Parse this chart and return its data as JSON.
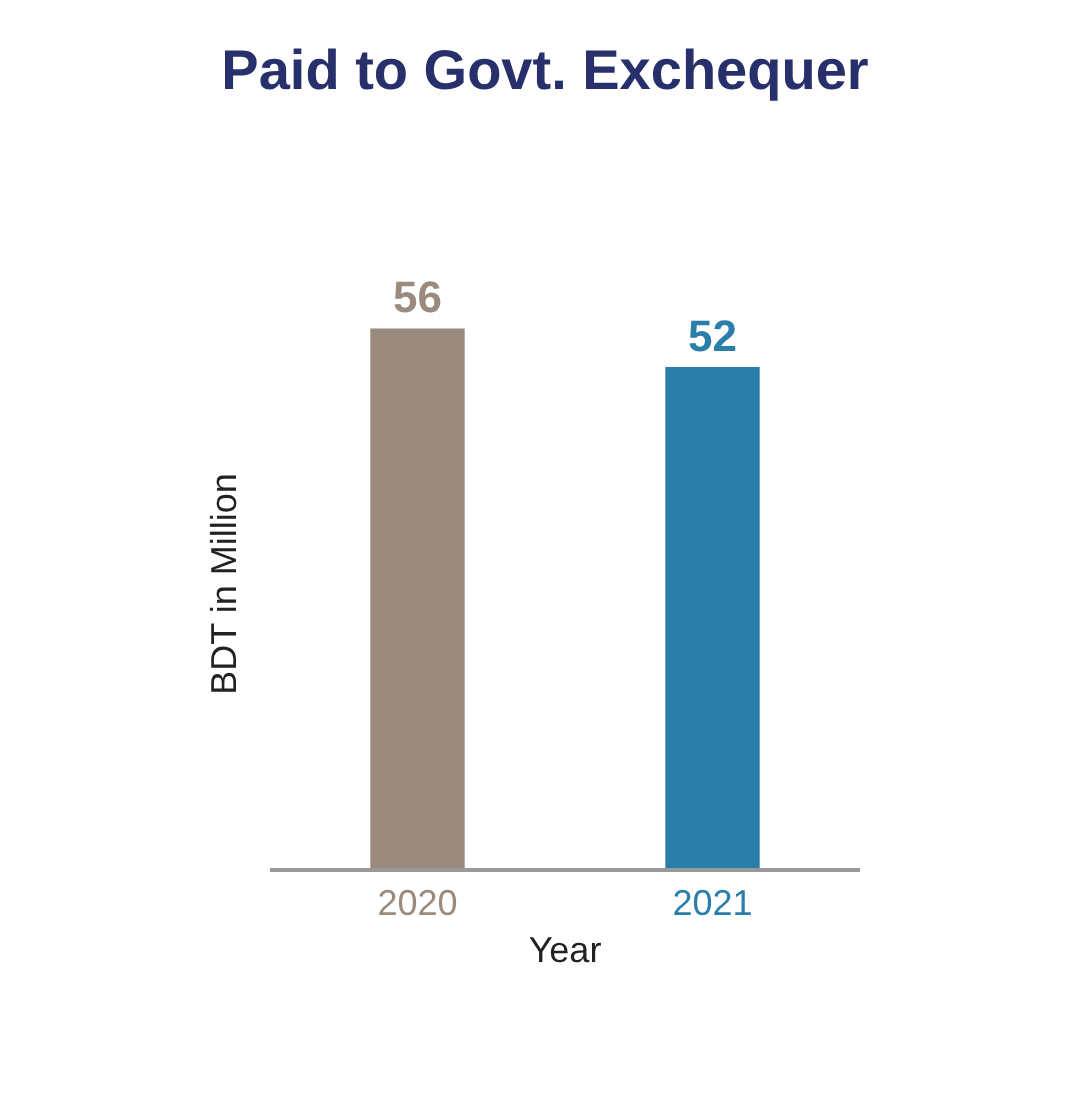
{
  "chart_data": {
    "type": "bar",
    "title": "Paid to Govt. Exchequer",
    "xlabel": "Year",
    "ylabel": "BDT in Million",
    "categories": [
      "2020",
      "2021"
    ],
    "values": [
      56,
      52
    ],
    "colors": [
      "#9a8b7e",
      "#2a7eaa"
    ],
    "data_labels": true
  }
}
